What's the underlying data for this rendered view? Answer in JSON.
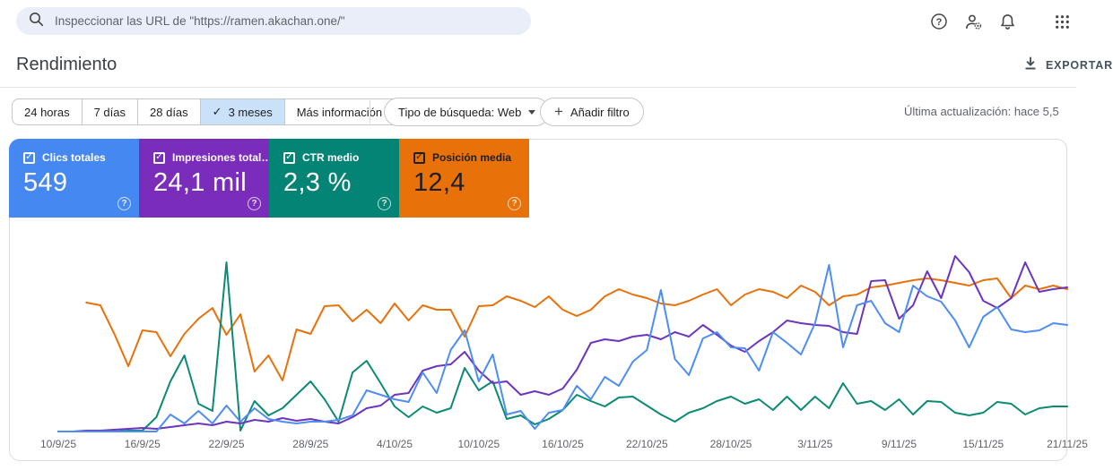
{
  "topbar": {
    "search_placeholder": "Inspeccionar las URL de \"https://ramen.akachan.one/\""
  },
  "header": {
    "title": "Rendimiento",
    "export_label": "EXPORTAR"
  },
  "filters": {
    "ranges": [
      "24 horas",
      "7 días",
      "28 días",
      "3 meses",
      "Más información"
    ],
    "selected_range": "3 meses",
    "check_glyph": "✓",
    "search_type_label": "Tipo de búsqueda: Web",
    "add_filter_label": "Añadir filtro",
    "plus_glyph": "+",
    "last_updated": "Última actualización: hace 5,5"
  },
  "metrics": {
    "cards": [
      {
        "id": "clics",
        "label": "Clics totales",
        "value": "549",
        "color": "#4688f1",
        "text_color": "#ffffff",
        "checked": true
      },
      {
        "id": "impresiones",
        "label": "Impresiones total…",
        "value": "24,1 mil",
        "color": "#7a2dbb",
        "text_color": "#ffffff",
        "checked": true
      },
      {
        "id": "ctr",
        "label": "CTR medio",
        "value": "2,3 %",
        "color": "#038475",
        "text_color": "#ffffff",
        "checked": true
      },
      {
        "id": "posicion",
        "label": "Posición media",
        "value": "12,4",
        "color": "#e8710a",
        "text_color": "#1f1f1f",
        "checked": true
      }
    ],
    "help_glyph": "?"
  },
  "chart_data": {
    "type": "line",
    "note": "Google Search Console performance chart, daily points 10/9/25–21/11/25. No visible y-axis; values are normalized 0–100 of plot height per metric.",
    "x_ticks": [
      "10/9/25",
      "16/9/25",
      "22/9/25",
      "28/9/25",
      "4/10/25",
      "10/10/25",
      "16/10/25",
      "22/10/25",
      "28/10/25",
      "3/11/25",
      "9/11/25",
      "15/11/25",
      "21/11/25"
    ],
    "tick_every_days": 6,
    "ylim": [
      0,
      100
    ],
    "grid": false,
    "legend": "color-keyed to metric tiles above",
    "series": [
      {
        "id": "posicion",
        "name": "Posición media",
        "color": "#e8710a",
        "values": [
          null,
          null,
          73,
          71.5,
          55.5,
          37.5,
          57.5,
          56.5,
          43,
          55.5,
          64,
          70,
          55,
          66.5,
          34.5,
          43.5,
          29.5,
          58,
          55.5,
          71,
          71.5,
          62.5,
          69,
          61.5,
          72.5,
          63,
          71.5,
          69,
          69,
          54,
          71,
          71.5,
          76.5,
          74,
          70.5,
          76.5,
          69,
          65.5,
          69,
          76.5,
          80.5,
          77.5,
          75.5,
          72.5,
          71.5,
          74,
          77.5,
          80.5,
          71.5,
          77.5,
          80.5,
          79,
          75.5,
          82.5,
          79,
          71.5,
          76.5,
          77.5,
          81.5,
          82.5,
          84,
          85.5,
          86.5,
          85.5,
          84,
          82.5,
          85.5,
          86.5,
          75.5,
          82.5,
          80.5,
          82.5,
          80.5
        ]
      },
      {
        "id": "ctr",
        "name": "CTR medio",
        "color": "#0b8a74",
        "values": [
          1,
          1,
          1,
          1,
          1,
          1.5,
          1.5,
          9,
          29,
          43.5,
          16.5,
          12.5,
          95.5,
          1.5,
          18,
          10,
          14,
          21.5,
          29,
          19,
          6.5,
          34,
          40.5,
          28,
          15,
          9,
          15,
          11.5,
          14,
          36.5,
          24,
          29,
          8,
          10,
          5,
          8,
          13,
          21.5,
          18,
          15,
          20,
          20.5,
          15.5,
          10.5,
          6.5,
          11.5,
          14,
          18,
          20.5,
          16.5,
          19,
          13,
          20.5,
          13,
          20.5,
          14,
          28,
          16.5,
          18,
          13,
          19,
          10.5,
          18,
          17.5,
          11.5,
          10,
          11.5,
          17.5,
          16.5,
          10.5,
          14,
          15,
          15
        ]
      },
      {
        "id": "impresiones",
        "name": "Impresiones totales",
        "color": "#6c35bd",
        "values": [
          1,
          1,
          1.5,
          1.5,
          2,
          2.5,
          3,
          2.5,
          3.5,
          4.5,
          5.5,
          4.5,
          6.5,
          5.5,
          7.5,
          6.5,
          8.5,
          7,
          8,
          6.5,
          5.5,
          9,
          14,
          15.5,
          21.5,
          22.5,
          35,
          37.5,
          38.5,
          45.5,
          35,
          28,
          29,
          21.5,
          23.5,
          21.5,
          25,
          35.5,
          50.5,
          52.5,
          51.5,
          54,
          55,
          52.5,
          56.5,
          54,
          60.5,
          55,
          49,
          45.5,
          51.5,
          56.5,
          63,
          61.5,
          60.5,
          60,
          56.5,
          55.5,
          85,
          85.5,
          64,
          71.5,
          90.5,
          75.5,
          99,
          90,
          74,
          70,
          75.5,
          95.5,
          79,
          80.5,
          81.5
        ]
      },
      {
        "id": "clics",
        "name": "Clics totales",
        "color": "#4e8df2",
        "values": [
          1,
          1,
          1,
          1,
          1,
          1,
          1,
          1,
          10.5,
          5.5,
          12.5,
          5.5,
          15.5,
          6.5,
          14,
          8,
          6.5,
          5.5,
          6.5,
          6.5,
          7.5,
          10,
          24,
          21.5,
          19,
          17.5,
          34,
          22.5,
          46.5,
          57.5,
          29,
          44,
          10.5,
          12.5,
          2.5,
          11.5,
          13,
          26.5,
          19,
          31.5,
          26.5,
          40,
          46.5,
          80,
          41.5,
          32.5,
          53,
          56.5,
          48,
          47.5,
          35,
          56.5,
          50.5,
          44,
          61.5,
          94,
          48,
          71.5,
          74,
          61.5,
          56.5,
          82.5,
          76.5,
          73.5,
          63,
          48,
          65,
          70.5,
          58,
          56.5,
          57.5,
          61.5,
          60.5
        ]
      }
    ]
  }
}
